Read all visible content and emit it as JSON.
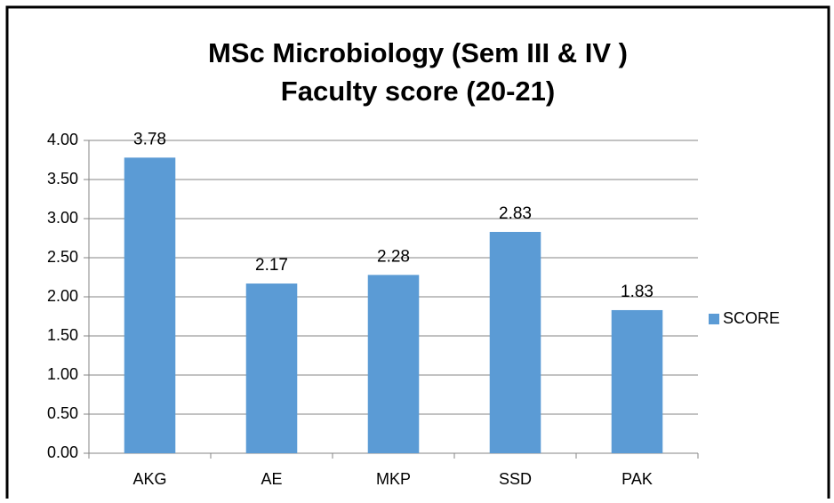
{
  "chart_data": {
    "type": "bar",
    "title": [
      "MSc Microbiology  (Sem III & IV )",
      "Faculty score (20-21)"
    ],
    "categories": [
      "AKG",
      "AE",
      "MKP",
      "SSD",
      "PAK"
    ],
    "series": [
      {
        "name": "SCORE",
        "color": "#5b9bd5",
        "values": [
          3.78,
          2.17,
          2.28,
          2.83,
          1.83
        ]
      }
    ],
    "ylim": [
      0,
      4
    ],
    "yticks": [
      {
        "value": 0,
        "label": "0.00"
      },
      {
        "value": 0.5,
        "label": "0.50"
      },
      {
        "value": 1,
        "label": "1.00"
      },
      {
        "value": 1.5,
        "label": "1.50"
      },
      {
        "value": 2,
        "label": "2.00"
      },
      {
        "value": 2.5,
        "label": "2.50"
      },
      {
        "value": 3,
        "label": "3.00"
      },
      {
        "value": 3.5,
        "label": "3.50"
      },
      {
        "value": 4,
        "label": "4.00"
      }
    ],
    "grid": true,
    "legend": "right"
  }
}
